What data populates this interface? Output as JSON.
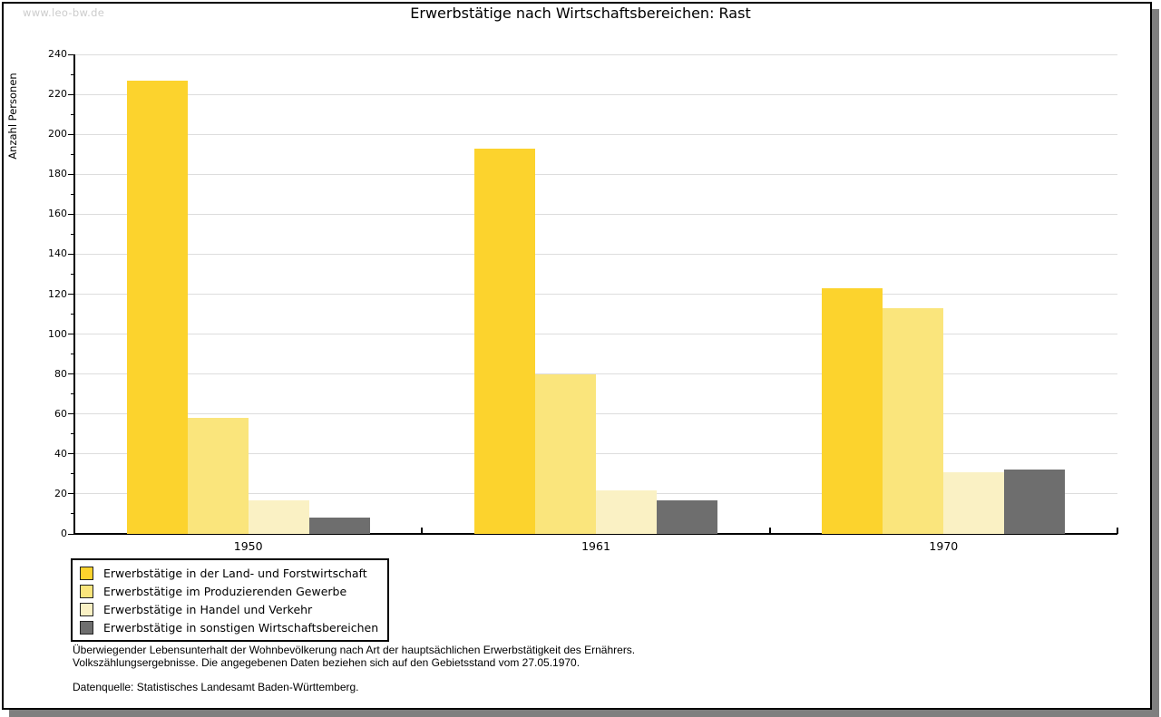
{
  "watermark": "www.leo-bw.de",
  "title": "Erwerbstätige nach Wirtschaftsbereichen: Rast",
  "chart_data": {
    "type": "bar",
    "title": "Erwerbstätige nach Wirtschaftsbereichen: Rast",
    "xlabel": "",
    "ylabel": "Anzahl Personen",
    "ylim": [
      0,
      240
    ],
    "ytick_step": 20,
    "minor_tick_step": 10,
    "grid": true,
    "legend_position": "bottom-left",
    "categories": [
      "1950",
      "1961",
      "1970"
    ],
    "series": [
      {
        "name": "Erwerbstätige in der Land- und Forstwirtschaft",
        "color": "#FCD32D",
        "values": [
          227,
          193,
          123
        ]
      },
      {
        "name": "Erwerbstätige im Produzierenden Gewerbe",
        "color": "#FAE57C",
        "values": [
          58,
          80,
          113
        ]
      },
      {
        "name": "Erwerbstätige in Handel und Verkehr",
        "color": "#FAF1C4",
        "values": [
          17,
          22,
          31
        ]
      },
      {
        "name": "Erwerbstätige in sonstigen Wirtschaftsbereichen",
        "color": "#6E6E6E",
        "values": [
          8,
          17,
          32
        ]
      }
    ],
    "axis_color": "#000000",
    "gridline_color": "#dddddd"
  },
  "footnotes": {
    "line1": "Überwiegender Lebensunterhalt der Wohnbevölkerung nach Art der hauptsächlichen Erwerbstätigkeit des Ernährers.",
    "line2": "Volkszählungsergebnisse. Die angegebenen Daten beziehen sich auf den Gebietsstand vom 27.05.1970.",
    "source": "Datenquelle: Statistisches Landesamt Baden-Württemberg."
  }
}
